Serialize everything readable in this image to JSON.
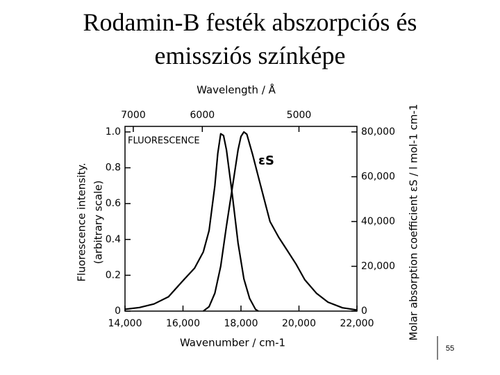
{
  "title": "Rodamin-B festék abszorpciós és emissziós színképe",
  "page_number": "55",
  "chart_data": {
    "type": "line",
    "xlabel": "Wavenumber / cm-1",
    "x2label": "Wavelength / Å",
    "ylabel": [
      "Fluorescence intensity.",
      "(arbitrary scale)"
    ],
    "y2label": "Molar absorption coefficient εS / l mol-1 cm-1",
    "annotations": [
      "FLUORESCENCE",
      "εS"
    ],
    "xlim": [
      14000,
      22000
    ],
    "xticks": [
      {
        "value": 14000,
        "label": "14,000"
      },
      {
        "value": 16000,
        "label": "16,000"
      },
      {
        "value": 18000,
        "label": "18,000"
      },
      {
        "value": 20000,
        "label": "20,000"
      },
      {
        "value": 22000,
        "label": "22,000"
      }
    ],
    "x2ticks": [
      7000,
      6000,
      5000
    ],
    "ylim": [
      0,
      1
    ],
    "yticks": [
      0,
      0.2,
      0.4,
      0.6,
      0.8,
      {
        "value": 1,
        "label": "1.0"
      }
    ],
    "y2lim": [
      0,
      80000
    ],
    "y2ticks": [
      0,
      {
        "value": 20000,
        "label": "20,000"
      },
      {
        "value": 40000,
        "label": "40,000"
      },
      {
        "value": 60000,
        "label": "60,000"
      },
      {
        "value": 80000,
        "label": "80,000"
      }
    ],
    "series": [
      {
        "name": "FLUORESCENCE",
        "color": "#000000",
        "x": [
          14000,
          14500,
          15000,
          15500,
          16000,
          16400,
          16700,
          16900,
          17100,
          17200,
          17300,
          17400,
          17500,
          17700,
          17900,
          18100,
          18300,
          18500,
          18600
        ],
        "values": [
          0.01,
          0.02,
          0.04,
          0.08,
          0.17,
          0.24,
          0.33,
          0.45,
          0.7,
          0.88,
          0.99,
          0.98,
          0.9,
          0.65,
          0.38,
          0.18,
          0.07,
          0.01,
          0
        ]
      },
      {
        "name": "εS",
        "color": "#000000",
        "axis": "y2",
        "x": [
          16700,
          16900,
          17100,
          17300,
          17500,
          17700,
          17900,
          18000,
          18100,
          18200,
          18400,
          18600,
          18800,
          19000,
          19300,
          19600,
          19900,
          20200,
          20600,
          21000,
          21500,
          22000
        ],
        "values": [
          0,
          2000,
          8000,
          20000,
          38000,
          55000,
          72000,
          78000,
          80000,
          79000,
          70000,
          60000,
          50000,
          40000,
          33000,
          27000,
          21000,
          14000,
          8000,
          4000,
          1500,
          500
        ]
      }
    ]
  }
}
